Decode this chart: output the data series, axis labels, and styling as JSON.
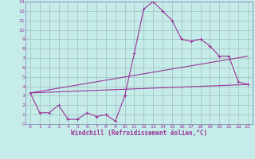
{
  "xlabel": "Windchill (Refroidissement éolien,°C)",
  "background_color": "#c6ecea",
  "grid_color": "#9dbfbe",
  "line_color": "#993399",
  "spine_color": "#7a7aaa",
  "xlim": [
    -0.5,
    23.5
  ],
  "ylim": [
    0,
    13
  ],
  "xticks": [
    0,
    1,
    2,
    3,
    4,
    5,
    6,
    7,
    8,
    9,
    10,
    11,
    12,
    13,
    14,
    15,
    16,
    17,
    18,
    19,
    20,
    21,
    22,
    23
  ],
  "yticks": [
    0,
    1,
    2,
    3,
    4,
    5,
    6,
    7,
    8,
    9,
    10,
    11,
    12,
    13
  ],
  "line1_x": [
    0,
    1,
    2,
    3,
    4,
    5,
    6,
    7,
    8,
    9,
    10,
    11,
    12,
    13,
    14,
    15,
    16,
    17,
    18,
    19,
    20,
    21,
    22,
    23
  ],
  "line1_y": [
    3.3,
    1.2,
    1.2,
    2.0,
    0.5,
    0.5,
    1.2,
    0.8,
    1.0,
    0.3,
    3.0,
    7.5,
    12.2,
    13.0,
    12.0,
    11.0,
    9.0,
    8.8,
    9.0,
    8.3,
    7.2,
    7.2,
    4.5,
    4.2
  ],
  "line2_x": [
    0,
    23
  ],
  "line2_y": [
    3.3,
    4.2
  ],
  "line3_x": [
    0,
    23
  ],
  "line3_y": [
    3.3,
    7.2
  ],
  "marker": "+"
}
